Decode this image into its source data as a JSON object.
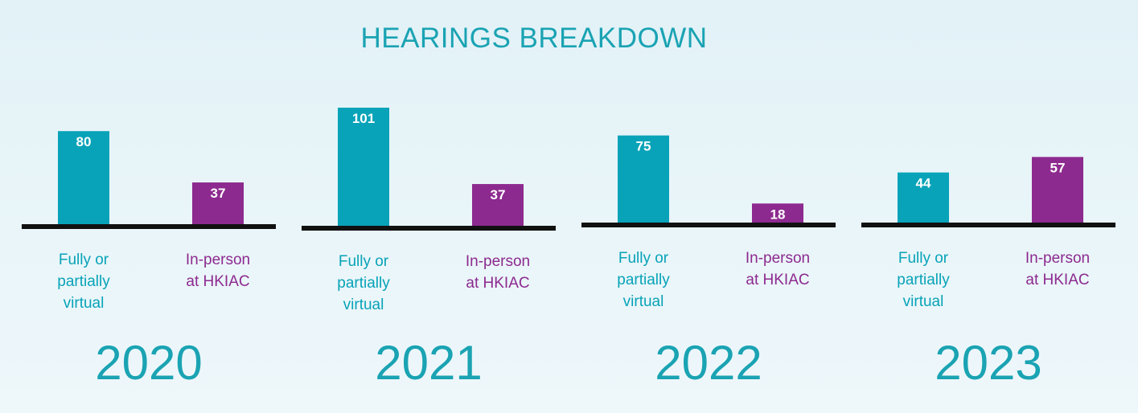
{
  "colors": {
    "virtual": "#08a3b8",
    "in_person": "#8d2a8f",
    "title": "#1aa3b3",
    "baseline": "#111111"
  },
  "chart_data": {
    "type": "bar",
    "title": "HEARINGS BREAKDOWN",
    "categories": [
      "Fully or partially virtual",
      "In-person at HKIAC"
    ],
    "category_lines": [
      [
        "Fully or",
        "partially",
        "virtual"
      ],
      [
        "In-person",
        "at HKIAC"
      ]
    ],
    "panels": [
      {
        "year": "2020",
        "values": [
          80,
          37
        ]
      },
      {
        "year": "2021",
        "values": [
          101,
          37
        ]
      },
      {
        "year": "2022",
        "values": [
          75,
          18
        ]
      },
      {
        "year": "2023",
        "values": [
          44,
          57
        ]
      }
    ],
    "ylim": [
      0,
      101
    ],
    "grid": false
  }
}
